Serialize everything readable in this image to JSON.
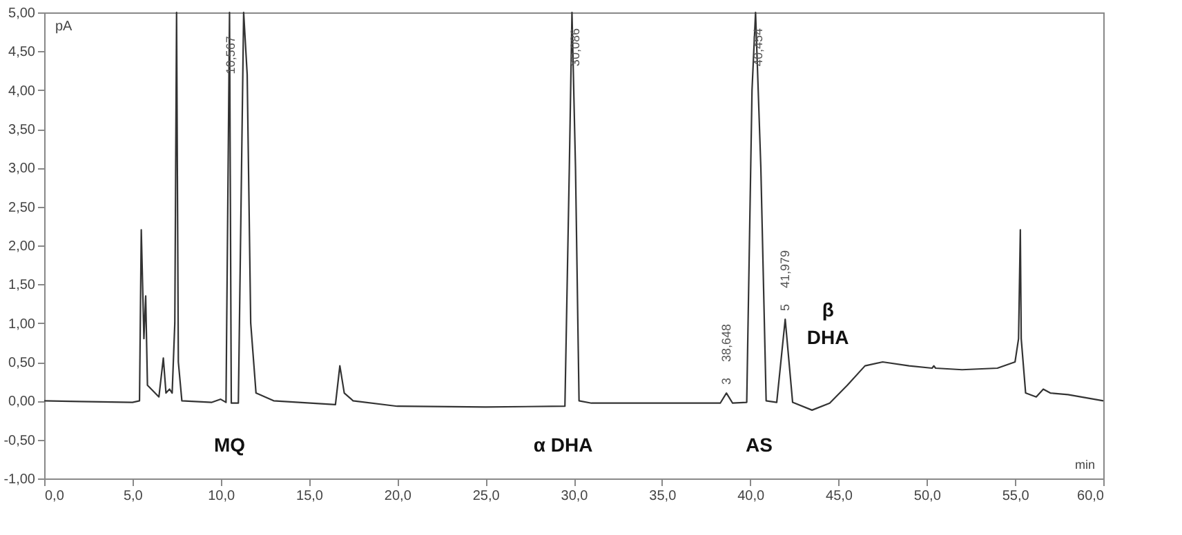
{
  "chart_data": {
    "type": "line",
    "xlabel": "min",
    "ylabel": "pA",
    "x": [
      0,
      2,
      5.0,
      5.4,
      5.5,
      5.65,
      5.75,
      5.85,
      6.5,
      6.75,
      6.9,
      7.1,
      7.25,
      7.4,
      7.5,
      7.6,
      7.8,
      9.5,
      10.0,
      10.3,
      10.5,
      10.6,
      11.0,
      11.3,
      11.5,
      11.7,
      12.0,
      13,
      16.5,
      16.75,
      17.0,
      17.5,
      20,
      25,
      29.5,
      29.75,
      29.9,
      30.1,
      30.3,
      31,
      35,
      38.3,
      38.65,
      39.0,
      39.8,
      40.1,
      40.3,
      40.6,
      40.9,
      41.5,
      41.98,
      42.4,
      43.5,
      44.5,
      45.5,
      46.5,
      47.5,
      49,
      50.3,
      50.4,
      50.5,
      52,
      54,
      55.0,
      55.2,
      55.3,
      55.35,
      55.6,
      56.2,
      56.6,
      57,
      58,
      60
    ],
    "series": [
      {
        "color": "#333333",
        "values": [
          0.0,
          -0.01,
          -0.02,
          0.0,
          2.2,
          0.8,
          1.35,
          0.2,
          0.05,
          0.55,
          0.1,
          0.15,
          0.1,
          1.0,
          5.0,
          0.5,
          0.0,
          -0.02,
          0.02,
          -0.02,
          5.0,
          -0.03,
          -0.03,
          5.0,
          4.2,
          1.0,
          0.1,
          0.0,
          -0.05,
          0.45,
          0.1,
          0.0,
          -0.07,
          -0.08,
          -0.07,
          3.0,
          5.0,
          3.0,
          0.0,
          -0.03,
          -0.03,
          -0.03,
          0.1,
          -0.03,
          -0.02,
          4.0,
          5.0,
          3.0,
          0.0,
          -0.02,
          1.05,
          -0.02,
          -0.12,
          -0.03,
          0.2,
          0.45,
          0.5,
          0.45,
          0.42,
          0.45,
          0.42,
          0.4,
          0.42,
          0.5,
          0.8,
          2.2,
          0.8,
          0.1,
          0.05,
          0.15,
          0.1,
          0.08,
          0.0
        ]
      }
    ],
    "xlim": [
      0,
      60
    ],
    "xticks": [
      {
        "value": 0,
        "label": "0,0"
      },
      {
        "value": 5,
        "label": "5,0"
      },
      {
        "value": 10,
        "label": "10,0"
      },
      {
        "value": 15,
        "label": "15,0"
      },
      {
        "value": 20,
        "label": "20,0"
      },
      {
        "value": 25,
        "label": "25,0"
      },
      {
        "value": 30,
        "label": "30,0"
      },
      {
        "value": 35,
        "label": "35,0"
      },
      {
        "value": 40,
        "label": "40,0"
      },
      {
        "value": 45,
        "label": "45,0"
      },
      {
        "value": 50,
        "label": "50,0"
      },
      {
        "value": 55,
        "label": "55,0"
      },
      {
        "value": 60,
        "label": "60,0"
      }
    ],
    "ylim": [
      -1,
      5
    ],
    "yticks": [
      {
        "value": -1,
        "label": "-1,00"
      },
      {
        "value": -0.5,
        "label": "-0,50"
      },
      {
        "value": 0,
        "label": "0,00"
      },
      {
        "value": 0.5,
        "label": "0,50"
      },
      {
        "value": 1,
        "label": "1,00"
      },
      {
        "value": 1.5,
        "label": "1,50"
      },
      {
        "value": 2,
        "label": "2,00"
      },
      {
        "value": 2.5,
        "label": "2,50"
      },
      {
        "value": 3,
        "label": "3,00"
      },
      {
        "value": 3.5,
        "label": "3,50"
      },
      {
        "value": 4,
        "label": "4,00"
      },
      {
        "value": 4.5,
        "label": "4,50"
      },
      {
        "value": 5,
        "label": "5,00"
      }
    ],
    "grid": false,
    "marker": "none",
    "line_style": "solid",
    "annotations": [
      {
        "text": "10,567",
        "x": 10.567,
        "y": 4.1
      },
      {
        "text": "30,086",
        "x": 30.086,
        "y": 4.2
      },
      {
        "text": "40,454",
        "x": 40.454,
        "y": 4.2
      },
      {
        "text": "3",
        "x": 38.648,
        "y": 0.1
      },
      {
        "text": "38,648",
        "x": 38.648,
        "y": 0.1
      },
      {
        "text": "5",
        "x": 41.979,
        "y": 1.05
      },
      {
        "text": "41,979",
        "x": 41.979,
        "y": 1.05
      },
      "MQ",
      "α DHA",
      "AS",
      "β",
      "DHA"
    ]
  }
}
